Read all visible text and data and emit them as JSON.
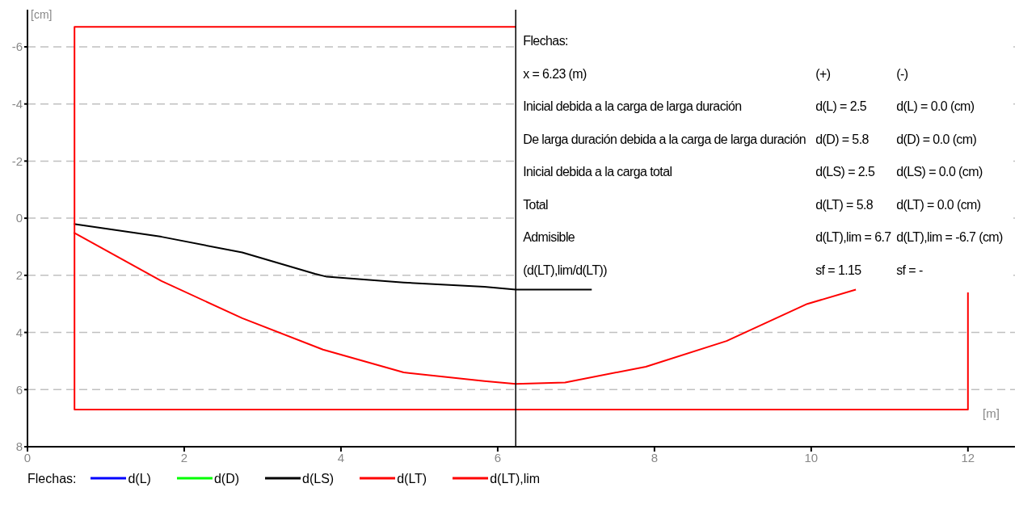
{
  "chart_data": {
    "type": "line",
    "xlabel": "[m]",
    "ylabel": "[cm]",
    "legend_title": "Flechas:",
    "legend": "bottom",
    "grid": "y",
    "marker": "none",
    "line_style": "solid",
    "xlim": [
      0,
      12.6
    ],
    "xticks": [
      0,
      2,
      4,
      6,
      8,
      10,
      12
    ],
    "ylim": [
      8,
      -7.3
    ],
    "yticks": [
      -6,
      -4,
      -2,
      0,
      2,
      4,
      6,
      8
    ],
    "series": [
      {
        "name": "d(L)",
        "color": "#0000ff"
      },
      {
        "name": "d(D)",
        "color": "#00ff00"
      },
      {
        "name": "d(LS)",
        "color": "#000000",
        "x": [
          0.59,
          1.71,
          2.74,
          3.67,
          3.82,
          4.8,
          5.83,
          6.23,
          7.2
        ],
        "values": [
          0.2,
          0.65,
          1.2,
          1.95,
          2.05,
          2.25,
          2.4,
          2.5,
          2.5
        ]
      },
      {
        "name": "d(LT)",
        "color": "#ff0000",
        "x": [
          0.59,
          1.71,
          2.74,
          3.77,
          4.8,
          5.83,
          6.23,
          6.86,
          7.89,
          8.92,
          9.95,
          10.57
        ],
        "values": [
          0.5,
          2.2,
          3.5,
          4.6,
          5.4,
          5.7,
          5.8,
          5.75,
          5.2,
          4.3,
          3.0,
          2.5
        ]
      },
      {
        "name": "d(LT),lim",
        "color": "#ff0000",
        "x": [
          6.23,
          0.6,
          0.6,
          12,
          12
        ],
        "values": [
          -6.7,
          -6.7,
          6.7,
          6.7,
          2.6
        ]
      }
    ],
    "ref_lines": [
      {
        "axis": "x",
        "value": 6.23,
        "color": "#000000"
      }
    ],
    "annotations": [
      "Flechas:",
      "x = 6.23 (m)",
      "(+)",
      "(-)",
      "Inicial debida a la carga de larga duración",
      "d(L) = 2.5",
      "d(L) = 0.0 (cm)",
      "De larga duración debida a la carga de larga duración",
      "d(D) = 5.8",
      "d(D) = 0.0 (cm)",
      "Inicial debida a la carga total",
      "d(LS) = 2.5",
      "d(LS) = 0.0 (cm)",
      "Total",
      "d(LT) = 5.8",
      "d(LT) = 0.0 (cm)",
      "Admisible",
      "d(LT),lim = 6.7",
      "d(LT),lim = -6.7 (cm)",
      "(d(LT),lim/d(LT))",
      "sf = 1.15",
      "sf = -"
    ]
  }
}
